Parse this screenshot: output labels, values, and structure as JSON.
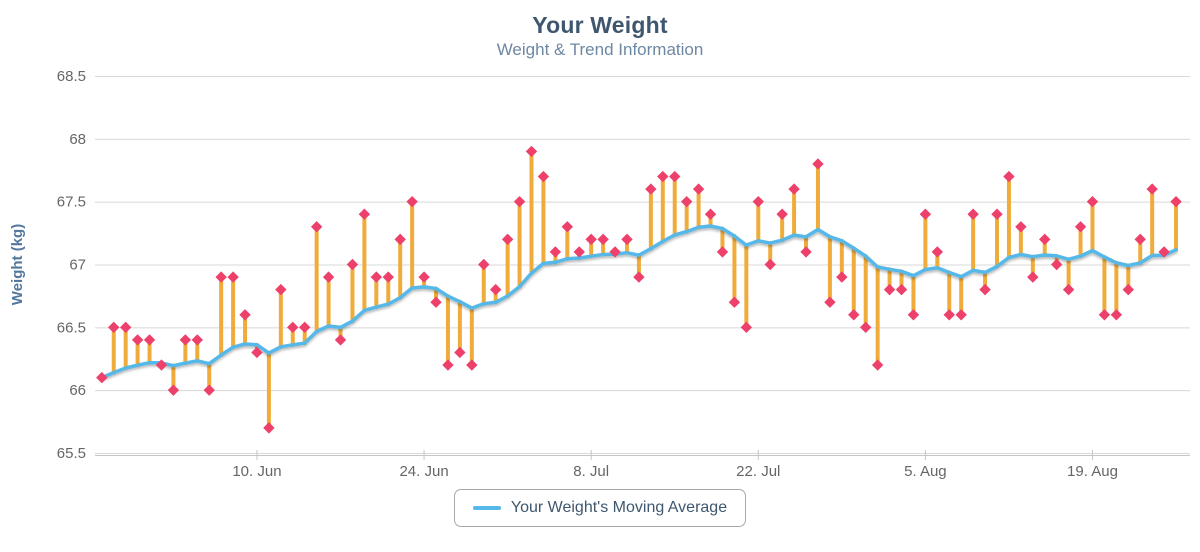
{
  "page": {
    "background": "#ffffff"
  },
  "chart_data": {
    "type": "scatter+line",
    "title": "Your Weight",
    "subtitle": "Weight & Trend Information",
    "ylabel": "Weight (kg)",
    "ylim": [
      65.5,
      68.5
    ],
    "y_ticks": [
      68.5,
      68,
      67.5,
      67,
      66.5,
      66,
      65.5
    ],
    "y_tick_labels": [
      "68.5",
      "68",
      "67.5",
      "67",
      "66.5",
      "66",
      "65.5"
    ],
    "x_ticks": [
      {
        "day_index": 13,
        "label": "10. Jun"
      },
      {
        "day_index": 27,
        "label": "24. Jun"
      },
      {
        "day_index": 41,
        "label": "8. Jul"
      },
      {
        "day_index": 55,
        "label": "22. Jul"
      },
      {
        "day_index": 69,
        "label": "5. Aug"
      },
      {
        "day_index": 83,
        "label": "19. Aug"
      }
    ],
    "grid": true,
    "legend_position": "bottom-center",
    "point_interval_days": 1,
    "series": [
      {
        "name": "Your Weight",
        "type": "scatter",
        "marker": "diamond",
        "color": "#ED416C",
        "stem_color": "#F0AC3A",
        "values": [
          66.1,
          66.5,
          66.5,
          66.4,
          66.4,
          66.2,
          66.0,
          66.4,
          66.4,
          66.0,
          66.9,
          66.9,
          66.6,
          66.3,
          65.7,
          66.8,
          66.5,
          66.5,
          67.3,
          66.9,
          66.4,
          67.0,
          67.4,
          66.9,
          66.9,
          67.2,
          67.5,
          66.9,
          66.7,
          66.2,
          66.3,
          66.2,
          67.0,
          66.8,
          67.2,
          67.5,
          67.9,
          67.7,
          67.1,
          67.3,
          67.1,
          67.2,
          67.2,
          67.1,
          67.2,
          66.9,
          67.6,
          67.7,
          67.7,
          67.5,
          67.6,
          67.4,
          67.1,
          66.7,
          66.5,
          67.5,
          67.0,
          67.4,
          67.6,
          67.1,
          67.8,
          66.7,
          66.9,
          66.6,
          66.5,
          66.2,
          66.8,
          66.8,
          66.6,
          67.4,
          67.1,
          66.6,
          66.6,
          67.4,
          66.8,
          67.4,
          67.7,
          67.3,
          66.9,
          67.2,
          67.0,
          66.8,
          67.3,
          67.5,
          66.6,
          66.6,
          66.8,
          67.2,
          67.6,
          67.1,
          67.5
        ]
      },
      {
        "name": "Your Weight's Moving Average",
        "type": "line",
        "color": "#55B8E8",
        "derived_from": "Your Weight",
        "derivation": "exponential_moving_average",
        "ewma_alpha": 0.1
      }
    ]
  },
  "legend": {
    "label": "Your Weight's Moving Average"
  },
  "colors": {
    "title": "#3e576f",
    "subtitle": "#6d88a3",
    "axis_labels": "#666666",
    "y_axis_title": "#54779e",
    "gridline": "#d8d8d8",
    "axis_line": "#c6c6c6",
    "trend_line": "#55B8E8",
    "stem": "#F0AC3A",
    "marker": "#ED416C"
  }
}
